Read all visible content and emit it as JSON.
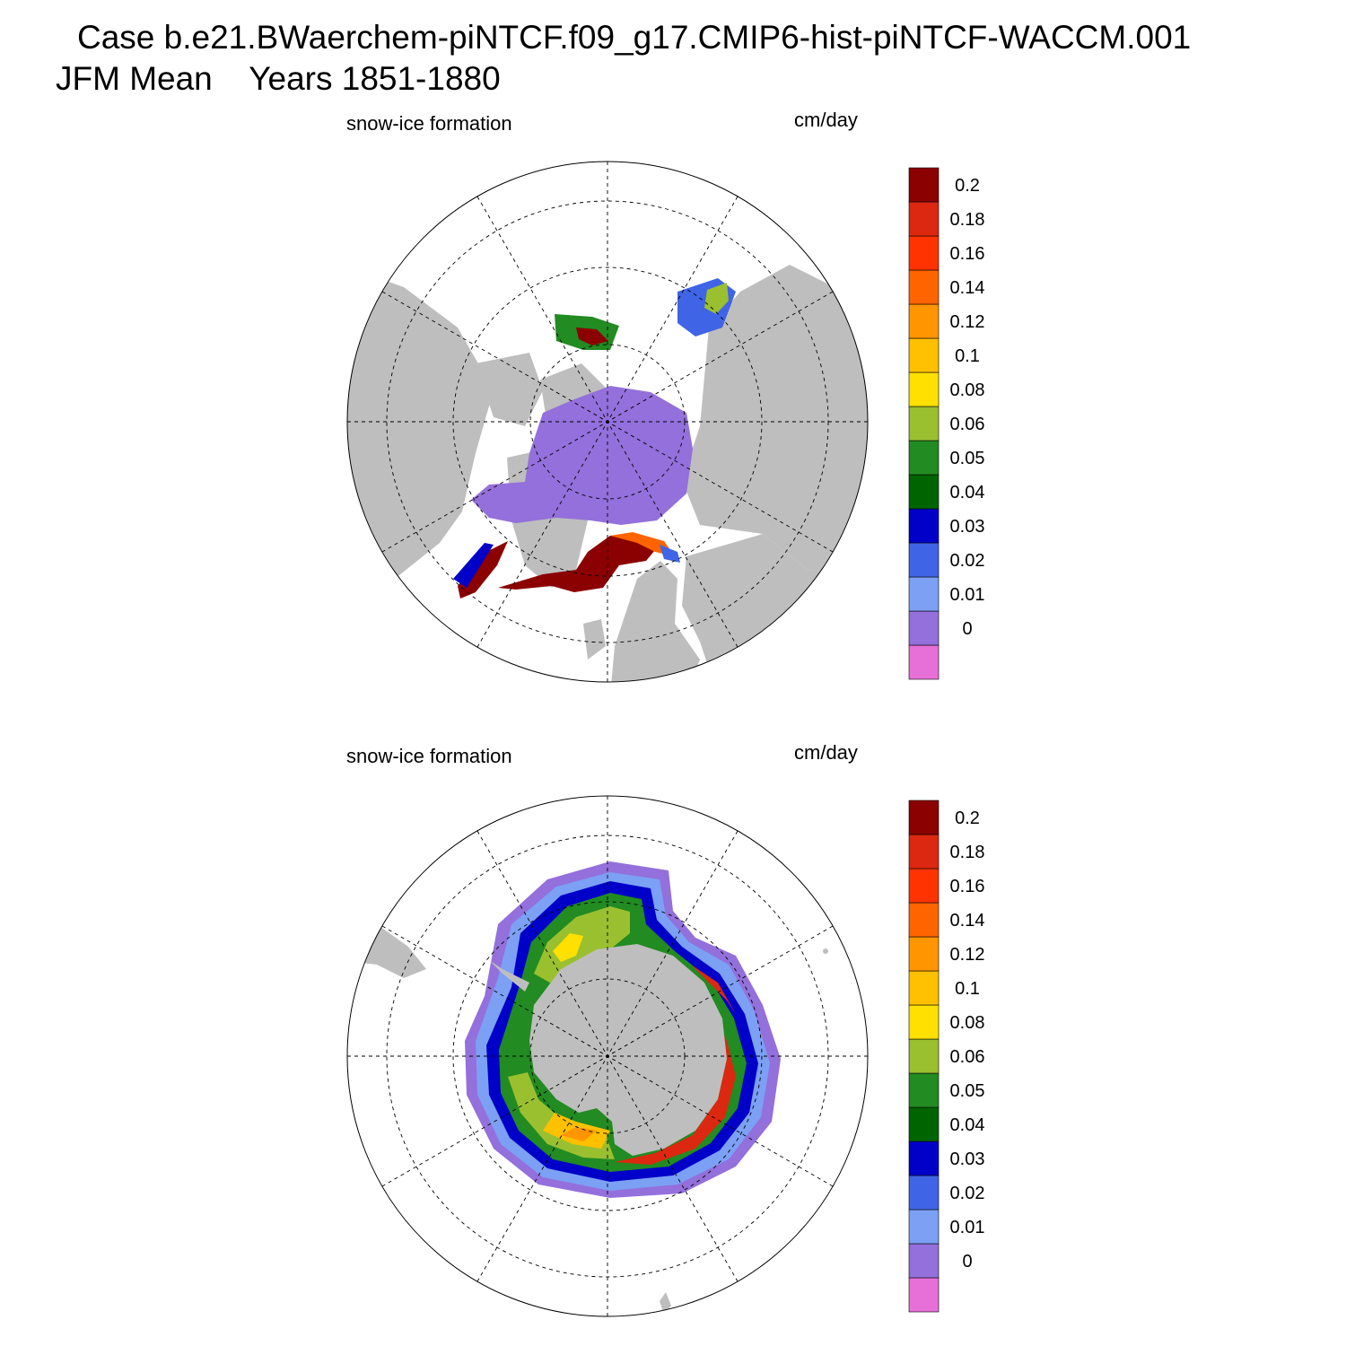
{
  "figure": {
    "title_line1": "Case b.e21.BWaerchem-piNTCF.f09_g17.CMIP6-hist-piNTCF-WACCM.001",
    "title_line2": "JFM Mean    Years 1851-1880"
  },
  "colorbar": {
    "colors": [
      "#e770d8",
      "#9370db",
      "#7ba0f4",
      "#3f64e6",
      "#0000c8",
      "#006400",
      "#228b22",
      "#9ac030",
      "#ffe000",
      "#ffc000",
      "#ff9500",
      "#ff6400",
      "#ff3300",
      "#dc2810",
      "#8b0000"
    ],
    "labels": [
      "0",
      "0.01",
      "0.02",
      "0.03",
      "0.04",
      "0.05",
      "0.06",
      "0.08",
      "0.1",
      "0.12",
      "0.14",
      "0.16",
      "0.18",
      "0.2"
    ]
  },
  "colors": {
    "land": "#bebebe",
    "grid": "#000000",
    "background": "#ffffff"
  },
  "panels": [
    {
      "id": "north",
      "title": "snow-ice formation",
      "units": "cm/day",
      "hemisphere": "Northern"
    },
    {
      "id": "south",
      "title": "snow-ice formation",
      "units": "cm/day",
      "hemisphere": "Southern"
    }
  ]
}
